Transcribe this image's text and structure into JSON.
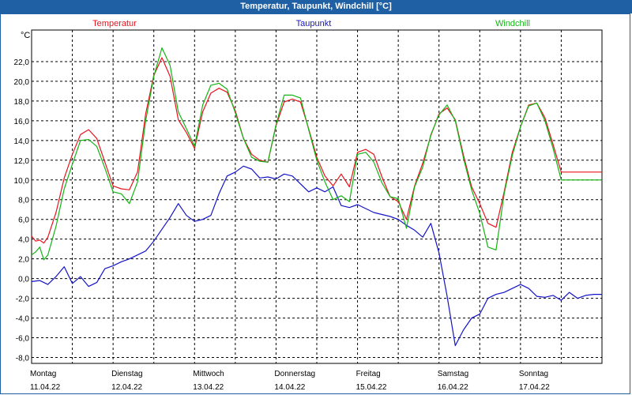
{
  "window": {
    "title": "Temperatur, Taupunkt, Windchill [°C]"
  },
  "chart_data": {
    "type": "line",
    "title": "Temperatur, Taupunkt, Windchill [°C]",
    "unit": "°C",
    "ylim": [
      -8.6,
      25.2
    ],
    "yticks": [
      "22,0",
      "20,0",
      "18,0",
      "16,0",
      "14,0",
      "12,0",
      "10,0",
      "8,0",
      "6,0",
      "4,0",
      "2,0",
      "0,0",
      "-2,0",
      "-4,0",
      "-6,0",
      "-8,0"
    ],
    "ytick_values": [
      22,
      20,
      18,
      16,
      14,
      12,
      10,
      8,
      6,
      4,
      2,
      0,
      -2,
      -4,
      -6,
      -8
    ],
    "xlim": [
      0,
      7
    ],
    "days": [
      {
        "name": "Montag",
        "date": "11.04.22"
      },
      {
        "name": "Dienstag",
        "date": "12.04.22"
      },
      {
        "name": "Mittwoch",
        "date": "13.04.22"
      },
      {
        "name": "Donnerstag",
        "date": "14.04.22"
      },
      {
        "name": "Freitag",
        "date": "15.04.22"
      },
      {
        "name": "Samstag",
        "date": "16.04.22"
      },
      {
        "name": "Sonntag",
        "date": "17.04.22"
      }
    ],
    "grid": true,
    "series": [
      {
        "name": "Temperatur",
        "color": "#e8141e",
        "x": [
          0,
          0.05,
          0.1,
          0.15,
          0.2,
          0.3,
          0.4,
          0.5,
          0.6,
          0.7,
          0.8,
          0.9,
          1.0,
          1.1,
          1.2,
          1.3,
          1.4,
          1.5,
          1.6,
          1.7,
          1.8,
          1.9,
          2.0,
          2.1,
          2.2,
          2.3,
          2.4,
          2.5,
          2.6,
          2.7,
          2.8,
          2.9,
          3.0,
          3.1,
          3.2,
          3.3,
          3.4,
          3.5,
          3.6,
          3.7,
          3.8,
          3.9,
          4.0,
          4.1,
          4.2,
          4.3,
          4.4,
          4.5,
          4.6,
          4.7,
          4.8,
          4.9,
          5.0,
          5.1,
          5.2,
          5.3,
          5.4,
          5.5,
          5.6,
          5.7,
          5.8,
          5.9,
          6.0,
          6.1,
          6.2,
          6.3,
          6.4,
          6.5,
          6.6,
          6.7,
          6.8,
          6.9,
          7.0
        ],
        "y": [
          4.3,
          3.8,
          3.9,
          3.6,
          4.2,
          6.7,
          10.2,
          12.6,
          14.6,
          15.1,
          14.2,
          11.8,
          9.4,
          9.1,
          9.0,
          10.8,
          16.7,
          20.6,
          22.4,
          20.5,
          16.1,
          14.8,
          13.2,
          16.9,
          18.8,
          19.3,
          18.9,
          17.0,
          14.2,
          12.6,
          12.0,
          11.8,
          15.5,
          17.9,
          18.2,
          17.9,
          15.2,
          12.3,
          10.4,
          9.4,
          10.6,
          9.3,
          12.8,
          13.1,
          12.6,
          10.3,
          8.3,
          7.8,
          6.0,
          9.4,
          11.7,
          14.5,
          16.7,
          17.3,
          16.1,
          12.5,
          9.3,
          7.6,
          5.6,
          5.2,
          8.8,
          12.8,
          15.4,
          17.6,
          17.8,
          16.3,
          13.6,
          10.8,
          10.8,
          10.8,
          10.8,
          10.8,
          10.8
        ]
      },
      {
        "name": "Taupunkt",
        "color": "#1414c8",
        "x": [
          0,
          0.1,
          0.2,
          0.3,
          0.4,
          0.5,
          0.6,
          0.7,
          0.8,
          0.9,
          1.0,
          1.1,
          1.2,
          1.3,
          1.4,
          1.5,
          1.6,
          1.7,
          1.8,
          1.9,
          2.0,
          2.1,
          2.2,
          2.3,
          2.4,
          2.5,
          2.6,
          2.7,
          2.8,
          2.9,
          3.0,
          3.1,
          3.2,
          3.3,
          3.4,
          3.5,
          3.6,
          3.7,
          3.8,
          3.9,
          4.0,
          4.1,
          4.2,
          4.3,
          4.4,
          4.5,
          4.6,
          4.7,
          4.8,
          4.9,
          5.0,
          5.1,
          5.2,
          5.3,
          5.4,
          5.5,
          5.6,
          5.7,
          5.8,
          5.9,
          6.0,
          6.1,
          6.2,
          6.3,
          6.4,
          6.5,
          6.6,
          6.7,
          6.8,
          6.9,
          7.0
        ],
        "y": [
          -0.3,
          -0.2,
          -0.6,
          0.2,
          1.2,
          -0.5,
          0.2,
          -0.8,
          -0.4,
          1.0,
          1.3,
          1.7,
          2.0,
          2.4,
          2.8,
          3.8,
          5.0,
          6.2,
          7.6,
          6.4,
          5.8,
          6.0,
          6.4,
          8.6,
          10.4,
          10.8,
          11.4,
          11.1,
          10.2,
          10.3,
          10.1,
          10.6,
          10.4,
          9.6,
          8.8,
          9.2,
          8.8,
          9.3,
          7.4,
          7.2,
          7.5,
          7.1,
          6.7,
          6.5,
          6.3,
          6.0,
          5.4,
          4.9,
          4.2,
          5.6,
          2.6,
          -1.8,
          -6.8,
          -5.2,
          -4.0,
          -3.6,
          -2.0,
          -1.6,
          -1.4,
          -1.0,
          -0.6,
          -1.0,
          -1.8,
          -1.9,
          -1.7,
          -2.2,
          -1.4,
          -2.0,
          -1.7,
          -1.6,
          -1.6
        ]
      },
      {
        "name": "Windchill",
        "color": "#14b414",
        "x": [
          0,
          0.05,
          0.1,
          0.15,
          0.2,
          0.3,
          0.4,
          0.5,
          0.6,
          0.7,
          0.8,
          0.9,
          1.0,
          1.1,
          1.2,
          1.3,
          1.4,
          1.5,
          1.6,
          1.7,
          1.8,
          1.9,
          2.0,
          2.1,
          2.2,
          2.3,
          2.4,
          2.5,
          2.6,
          2.7,
          2.8,
          2.9,
          3.0,
          3.1,
          3.2,
          3.3,
          3.4,
          3.5,
          3.6,
          3.7,
          3.8,
          3.9,
          4.0,
          4.1,
          4.2,
          4.3,
          4.4,
          4.5,
          4.6,
          4.7,
          4.8,
          4.9,
          5.0,
          5.1,
          5.2,
          5.3,
          5.4,
          5.5,
          5.6,
          5.7,
          5.8,
          5.9,
          6.0,
          6.1,
          6.2,
          6.3,
          6.4,
          6.5,
          6.6,
          6.7,
          6.8,
          6.9,
          7.0
        ],
        "y": [
          2.4,
          2.7,
          3.2,
          1.9,
          2.4,
          5.3,
          9.1,
          11.6,
          14.0,
          14.1,
          13.4,
          11.2,
          8.8,
          8.6,
          7.6,
          9.8,
          16.0,
          20.5,
          23.4,
          21.6,
          16.9,
          15.2,
          13.4,
          17.6,
          19.6,
          19.8,
          19.2,
          16.8,
          14.2,
          12.3,
          11.9,
          11.8,
          15.6,
          18.6,
          18.6,
          18.3,
          15.1,
          12.0,
          9.8,
          8.0,
          8.4,
          7.8,
          12.6,
          12.8,
          11.8,
          9.7,
          8.3,
          8.1,
          5.1,
          9.3,
          11.3,
          14.6,
          16.6,
          17.6,
          16.0,
          12.2,
          9.0,
          6.6,
          3.2,
          2.9,
          8.6,
          12.5,
          15.4,
          17.5,
          17.8,
          16.0,
          13.2,
          10.0,
          10.0,
          10.0,
          10.0,
          10.0,
          10.0
        ]
      }
    ]
  }
}
